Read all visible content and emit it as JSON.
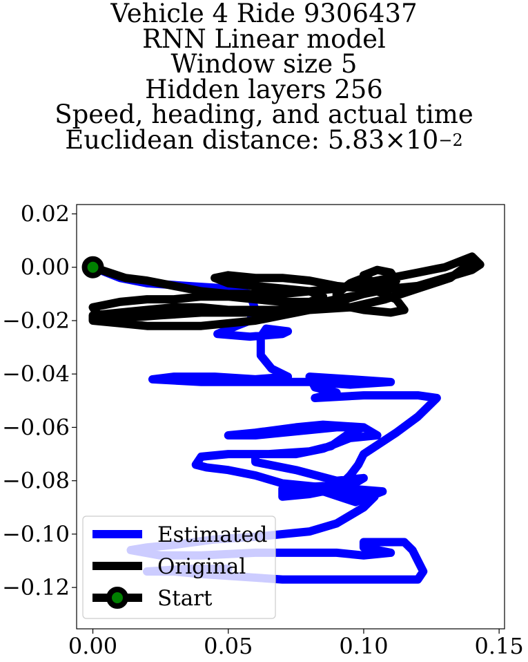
{
  "chart_data": {
    "type": "line",
    "title_lines": [
      "Vehicle 4 Ride 9306437",
      "RNN Linear model",
      "Window size 5",
      "Hidden layers 256",
      "Speed, heading, and actual time"
    ],
    "distance_label": "Euclidean distance: ",
    "distance_mantissa": "5.83",
    "distance_times": "×",
    "distance_base": "10",
    "distance_exponent": "−2",
    "xlabel": "",
    "ylabel": "",
    "xlim": [
      -0.006,
      0.152
    ],
    "ylim": [
      -0.1355,
      0.0235
    ],
    "xticks": [
      {
        "value": 0.0,
        "label": "0.00"
      },
      {
        "value": 0.05,
        "label": "0.05"
      },
      {
        "value": 0.1,
        "label": "0.10"
      },
      {
        "value": 0.15,
        "label": "0.15"
      }
    ],
    "yticks": [
      {
        "value": 0.02,
        "label": "0.02"
      },
      {
        "value": 0.0,
        "label": "0.00"
      },
      {
        "value": -0.02,
        "label": "−0.02"
      },
      {
        "value": -0.04,
        "label": "−0.04"
      },
      {
        "value": -0.06,
        "label": "−0.06"
      },
      {
        "value": -0.08,
        "label": "−0.08"
      },
      {
        "value": -0.1,
        "label": "−0.10"
      },
      {
        "value": -0.12,
        "label": "−0.12"
      }
    ],
    "grid": false,
    "legend_position": "lower-left",
    "series": [
      {
        "name": "Estimated",
        "color": "#0000ff",
        "points": [
          [
            0.0,
            0.0
          ],
          [
            0.01,
            -0.004
          ],
          [
            0.02,
            -0.006
          ],
          [
            0.035,
            -0.007
          ],
          [
            0.05,
            -0.008
          ],
          [
            0.058,
            -0.01
          ],
          [
            0.06,
            -0.016
          ],
          [
            0.058,
            -0.02
          ],
          [
            0.053,
            -0.022
          ],
          [
            0.046,
            -0.025
          ],
          [
            0.058,
            -0.026
          ],
          [
            0.07,
            -0.025
          ],
          [
            0.072,
            -0.024
          ],
          [
            0.064,
            -0.023
          ],
          [
            0.062,
            -0.026
          ],
          [
            0.062,
            -0.033
          ],
          [
            0.066,
            -0.038
          ],
          [
            0.072,
            -0.041
          ],
          [
            0.06,
            -0.042
          ],
          [
            0.045,
            -0.041
          ],
          [
            0.03,
            -0.041
          ],
          [
            0.022,
            -0.042
          ],
          [
            0.04,
            -0.043
          ],
          [
            0.06,
            -0.043
          ],
          [
            0.08,
            -0.043
          ],
          [
            0.095,
            -0.044
          ],
          [
            0.11,
            -0.043
          ],
          [
            0.095,
            -0.042
          ],
          [
            0.08,
            -0.041
          ],
          [
            0.082,
            -0.045
          ],
          [
            0.09,
            -0.047
          ],
          [
            0.082,
            -0.049
          ],
          [
            0.1,
            -0.048
          ],
          [
            0.12,
            -0.048
          ],
          [
            0.127,
            -0.049
          ],
          [
            0.12,
            -0.056
          ],
          [
            0.112,
            -0.062
          ],
          [
            0.1,
            -0.07
          ],
          [
            0.098,
            -0.074
          ],
          [
            0.095,
            -0.078
          ],
          [
            0.09,
            -0.083
          ],
          [
            0.08,
            -0.082
          ],
          [
            0.07,
            -0.081
          ],
          [
            0.06,
            -0.078
          ],
          [
            0.05,
            -0.076
          ],
          [
            0.042,
            -0.075
          ],
          [
            0.038,
            -0.074
          ],
          [
            0.04,
            -0.071
          ],
          [
            0.05,
            -0.07
          ],
          [
            0.065,
            -0.07
          ],
          [
            0.08,
            -0.069
          ],
          [
            0.088,
            -0.067
          ],
          [
            0.095,
            -0.062
          ],
          [
            0.1,
            -0.06
          ],
          [
            0.09,
            -0.06
          ],
          [
            0.08,
            -0.061
          ],
          [
            0.07,
            -0.062
          ],
          [
            0.06,
            -0.063
          ],
          [
            0.05,
            -0.063
          ],
          [
            0.06,
            -0.062
          ],
          [
            0.075,
            -0.06
          ],
          [
            0.085,
            -0.059
          ],
          [
            0.1,
            -0.06
          ],
          [
            0.105,
            -0.063
          ],
          [
            0.095,
            -0.064
          ],
          [
            0.085,
            -0.068
          ],
          [
            0.075,
            -0.07
          ],
          [
            0.06,
            -0.07
          ],
          [
            0.06,
            -0.073
          ],
          [
            0.075,
            -0.076
          ],
          [
            0.09,
            -0.08
          ],
          [
            0.1,
            -0.079
          ],
          [
            0.095,
            -0.082
          ],
          [
            0.08,
            -0.085
          ],
          [
            0.07,
            -0.086
          ],
          [
            0.07,
            -0.083
          ],
          [
            0.085,
            -0.082
          ],
          [
            0.095,
            -0.083
          ],
          [
            0.107,
            -0.084
          ],
          [
            0.097,
            -0.088
          ],
          [
            0.085,
            -0.084
          ],
          [
            0.094,
            -0.086
          ],
          [
            0.1,
            -0.085
          ],
          [
            0.104,
            -0.086
          ],
          [
            0.1,
            -0.09
          ],
          [
            0.09,
            -0.096
          ],
          [
            0.08,
            -0.099
          ],
          [
            0.06,
            -0.101
          ],
          [
            0.045,
            -0.102
          ],
          [
            0.03,
            -0.104
          ],
          [
            0.02,
            -0.105
          ],
          [
            0.014,
            -0.106
          ],
          [
            0.025,
            -0.108
          ],
          [
            0.04,
            -0.108
          ],
          [
            0.06,
            -0.107
          ],
          [
            0.075,
            -0.107
          ],
          [
            0.09,
            -0.107
          ],
          [
            0.1,
            -0.108
          ],
          [
            0.11,
            -0.107
          ],
          [
            0.1,
            -0.105
          ],
          [
            0.1,
            -0.103
          ],
          [
            0.115,
            -0.103
          ],
          [
            0.118,
            -0.106
          ],
          [
            0.12,
            -0.11
          ],
          [
            0.122,
            -0.114
          ],
          [
            0.12,
            -0.117
          ],
          [
            0.11,
            -0.117
          ],
          [
            0.1,
            -0.117
          ],
          [
            0.09,
            -0.117
          ],
          [
            0.08,
            -0.117
          ],
          [
            0.07,
            -0.117
          ],
          [
            0.055,
            -0.116
          ],
          [
            0.04,
            -0.115
          ],
          [
            0.03,
            -0.114
          ],
          [
            0.02,
            -0.114
          ],
          [
            0.035,
            -0.113
          ],
          [
            0.05,
            -0.113
          ]
        ]
      },
      {
        "name": "Original",
        "color": "#000000",
        "points": [
          [
            0.0,
            0.0
          ],
          [
            0.006,
            -0.002
          ],
          [
            0.012,
            -0.004
          ],
          [
            0.02,
            -0.005
          ],
          [
            0.03,
            -0.007
          ],
          [
            0.04,
            -0.009
          ],
          [
            0.05,
            -0.01
          ],
          [
            0.06,
            -0.01
          ],
          [
            0.07,
            -0.01
          ],
          [
            0.08,
            -0.009
          ],
          [
            0.09,
            -0.008
          ],
          [
            0.1,
            -0.006
          ],
          [
            0.11,
            -0.004
          ],
          [
            0.12,
            -0.002
          ],
          [
            0.13,
            0.0
          ],
          [
            0.14,
            0.004
          ],
          [
            0.143,
            0.001
          ],
          [
            0.14,
            -0.001
          ],
          [
            0.13,
            -0.004
          ],
          [
            0.12,
            -0.007
          ],
          [
            0.11,
            -0.008
          ],
          [
            0.1,
            -0.01
          ],
          [
            0.09,
            -0.012
          ],
          [
            0.08,
            -0.014
          ],
          [
            0.07,
            -0.016
          ],
          [
            0.06,
            -0.016
          ],
          [
            0.05,
            -0.016
          ],
          [
            0.04,
            -0.015
          ],
          [
            0.03,
            -0.015
          ],
          [
            0.02,
            -0.016
          ],
          [
            0.01,
            -0.017
          ],
          [
            0.0,
            -0.018
          ],
          [
            0.0,
            -0.02
          ],
          [
            0.01,
            -0.021
          ],
          [
            0.02,
            -0.022
          ],
          [
            0.03,
            -0.022
          ],
          [
            0.04,
            -0.022
          ],
          [
            0.05,
            -0.021
          ],
          [
            0.06,
            -0.02
          ],
          [
            0.07,
            -0.018
          ],
          [
            0.08,
            -0.016
          ],
          [
            0.09,
            -0.013
          ],
          [
            0.1,
            -0.01
          ],
          [
            0.105,
            -0.006
          ],
          [
            0.1,
            -0.004
          ],
          [
            0.095,
            -0.006
          ],
          [
            0.09,
            -0.01
          ],
          [
            0.09,
            -0.014
          ],
          [
            0.1,
            -0.016
          ],
          [
            0.11,
            -0.017
          ],
          [
            0.115,
            -0.016
          ],
          [
            0.112,
            -0.012
          ],
          [
            0.105,
            -0.009
          ],
          [
            0.1,
            -0.006
          ],
          [
            0.1,
            -0.003
          ],
          [
            0.105,
            -0.001
          ],
          [
            0.11,
            -0.002
          ],
          [
            0.112,
            -0.005
          ],
          [
            0.108,
            -0.007
          ],
          [
            0.1,
            -0.008
          ],
          [
            0.09,
            -0.007
          ],
          [
            0.08,
            -0.005
          ],
          [
            0.07,
            -0.004
          ],
          [
            0.06,
            -0.004
          ],
          [
            0.05,
            -0.003
          ],
          [
            0.045,
            -0.004
          ],
          [
            0.05,
            -0.006
          ],
          [
            0.06,
            -0.007
          ],
          [
            0.07,
            -0.008
          ],
          [
            0.08,
            -0.009
          ],
          [
            0.085,
            -0.011
          ],
          [
            0.08,
            -0.013
          ],
          [
            0.07,
            -0.013
          ],
          [
            0.06,
            -0.012
          ],
          [
            0.05,
            -0.011
          ],
          [
            0.04,
            -0.011
          ],
          [
            0.03,
            -0.012
          ],
          [
            0.02,
            -0.012
          ],
          [
            0.01,
            -0.013
          ],
          [
            0.0,
            -0.015
          ],
          [
            0.002,
            -0.018
          ],
          [
            0.012,
            -0.019
          ],
          [
            0.025,
            -0.018
          ],
          [
            0.04,
            -0.017
          ],
          [
            0.06,
            -0.017
          ],
          [
            0.08,
            -0.016
          ],
          [
            0.095,
            -0.015
          ],
          [
            0.108,
            -0.012
          ],
          [
            0.12,
            -0.008
          ],
          [
            0.132,
            -0.004
          ],
          [
            0.14,
            0.002
          ]
        ]
      },
      {
        "name": "Start",
        "color": "#000000",
        "marker_face": "#008000",
        "points": [
          [
            0.0,
            0.0
          ]
        ]
      }
    ]
  }
}
